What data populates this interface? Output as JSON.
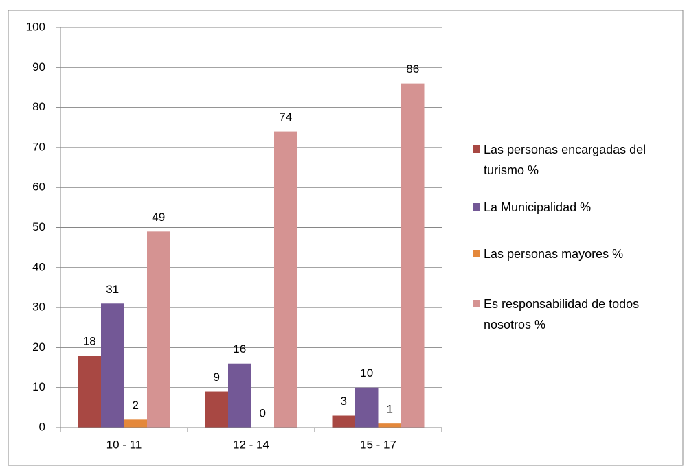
{
  "chart_data": {
    "type": "bar",
    "categories": [
      "10 - 11",
      "12 - 14",
      "15 - 17"
    ],
    "series": [
      {
        "name": "Las personas encargadas del turismo %",
        "color": "#a84843",
        "values": [
          18,
          9,
          3
        ]
      },
      {
        "name": "La Municipalidad %",
        "color": "#735896",
        "values": [
          31,
          16,
          10
        ]
      },
      {
        "name": "Las personas mayores %",
        "color": "#e4883b",
        "values": [
          2,
          0,
          1
        ]
      },
      {
        "name": "Es responsabilidad de todos nosotros %",
        "color": "#d59392",
        "values": [
          49,
          74,
          86
        ]
      }
    ],
    "ylim": [
      0,
      100
    ],
    "yticks": [
      0,
      10,
      20,
      30,
      40,
      50,
      60,
      70,
      80,
      90,
      100
    ],
    "grid": true,
    "legend": "right"
  }
}
